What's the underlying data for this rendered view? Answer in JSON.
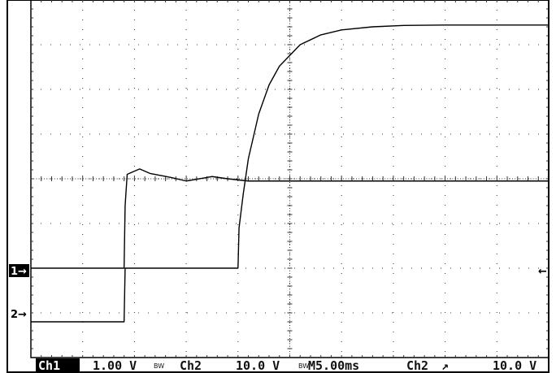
{
  "chart_data": {
    "type": "line",
    "divisions": {
      "x": 10,
      "y": 8
    },
    "grid": true,
    "xlim": [
      0,
      50
    ],
    "ylim": [
      -4,
      4
    ],
    "series": [
      {
        "name": "1",
        "x": [
          0,
          9.0,
          9.1,
          9.3,
          10.5,
          11.5,
          13.5,
          15.0,
          17.5,
          19.0,
          21.0,
          50
        ],
        "y": [
          -2.0,
          -2.0,
          -0.6,
          0.1,
          0.22,
          0.12,
          0.03,
          -0.05,
          0.05,
          0.0,
          -0.05,
          -0.05
        ]
      },
      {
        "name": "2",
        "x": [
          0,
          9.0,
          9.1,
          20.0,
          20.1,
          20.5,
          21.0,
          22.0,
          23.0,
          24.0,
          26.0,
          28.0,
          30.0,
          33.0,
          36.0,
          40.0,
          45.0,
          50.0
        ],
        "y": [
          -3.2,
          -3.2,
          -2.0,
          -2.0,
          -1.1,
          -0.35,
          0.45,
          1.45,
          2.1,
          2.52,
          3.0,
          3.22,
          3.33,
          3.4,
          3.43,
          3.44,
          3.44,
          3.44
        ]
      }
    ]
  },
  "markers": {
    "ch1_ground": "1→",
    "ch2_ground": "2→",
    "trigger_level": "←"
  },
  "status_bar": {
    "ch1_label": "Ch1",
    "ch1_scale": "1.00 V",
    "ch1_bw": "BW",
    "ch2_label": "Ch2",
    "ch2_scale": "10.0 V",
    "ch2_bw": "BW",
    "timebase": "M5.00ms",
    "trigger_source": "Ch2",
    "trigger_slope": "↗",
    "trigger_level": "10.0 V"
  },
  "colors": {
    "trace": "#000000",
    "grid": "#333333",
    "marker_bg": "#000000",
    "marker_fg": "#ffffff",
    "background": "#ffffff"
  }
}
